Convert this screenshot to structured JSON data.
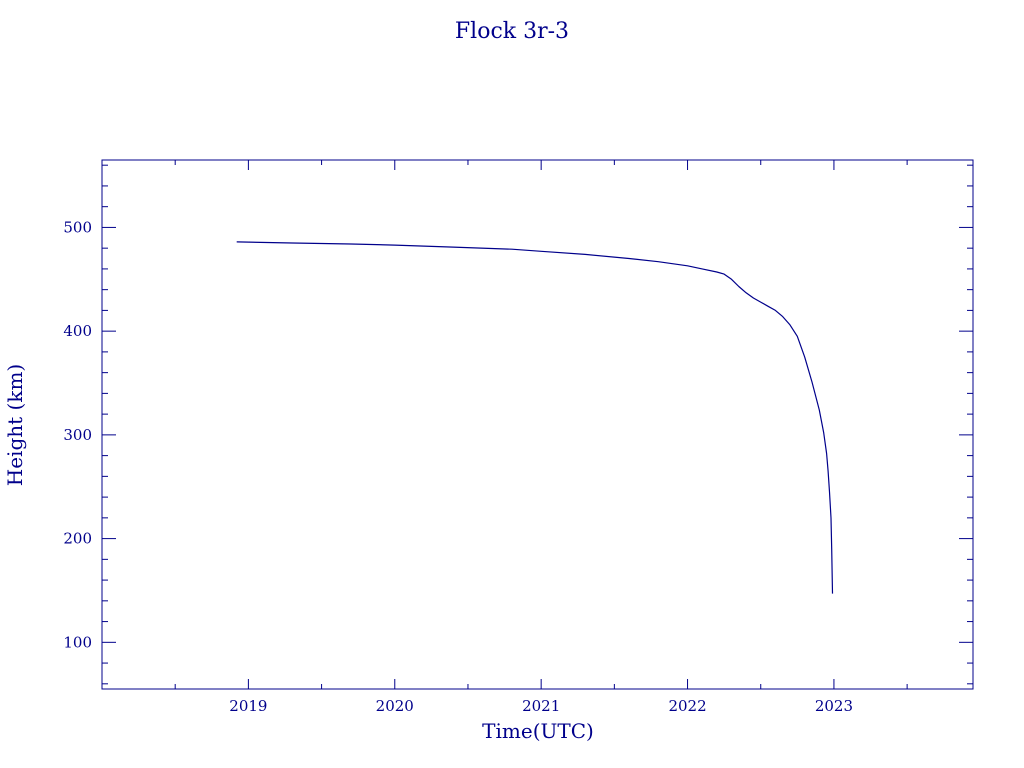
{
  "chart_data": {
    "type": "line",
    "title": "Flock 3r-3",
    "xlabel": "Time(UTC)",
    "ylabel": "Height (km)",
    "xlim": [
      2018.0,
      2023.95
    ],
    "ylim": [
      55,
      565
    ],
    "x_ticks": [
      2019,
      2020,
      2021,
      2022,
      2023
    ],
    "x_tick_labels": [
      "2019",
      "2020",
      "2021",
      "2022",
      "2023"
    ],
    "y_ticks": [
      100,
      200,
      300,
      400,
      500
    ],
    "y_tick_labels": [
      "100",
      "200",
      "300",
      "400",
      "500"
    ],
    "grid": false,
    "color": "#00008b",
    "series": [
      {
        "x": [
          2018.92,
          2019.3,
          2019.7,
          2020.0,
          2020.4,
          2020.8,
          2021.0,
          2021.3,
          2021.6,
          2021.8,
          2022.0,
          2022.1,
          2022.2,
          2022.25,
          2022.3,
          2022.35,
          2022.4,
          2022.45,
          2022.5,
          2022.55,
          2022.6,
          2022.65,
          2022.7,
          2022.75,
          2022.8,
          2022.85,
          2022.9,
          2022.93,
          2022.95,
          2022.96,
          2022.97,
          2022.98,
          2022.985,
          2022.99
        ],
        "y": [
          486,
          485,
          484,
          483,
          481,
          479,
          477,
          474,
          470,
          467,
          463,
          460,
          457,
          455,
          450,
          443,
          437,
          432,
          428,
          424,
          420,
          414,
          406,
          395,
          375,
          351,
          324,
          302,
          282,
          265,
          245,
          220,
          190,
          147
        ]
      }
    ]
  }
}
